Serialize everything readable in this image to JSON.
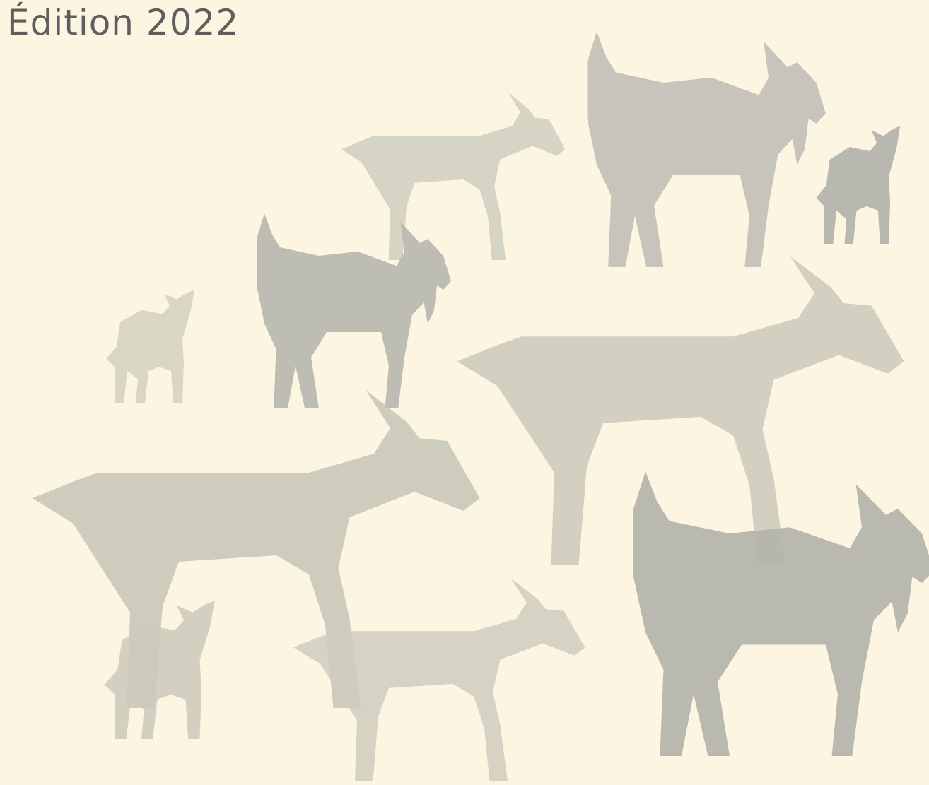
{
  "edition": "Édition 2022"
}
